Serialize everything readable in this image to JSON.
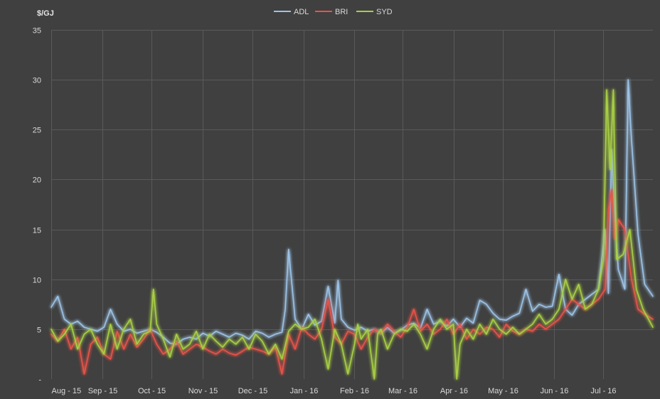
{
  "chart_data": {
    "type": "line",
    "ylabel": "$/GJ",
    "ylim": [
      0,
      35
    ],
    "yticks": [
      0,
      5,
      10,
      15,
      20,
      25,
      30,
      35
    ],
    "ytick_labels": [
      "-",
      "5",
      "10",
      "15",
      "20",
      "25",
      "30",
      "35"
    ],
    "x_start": "2015-08-01",
    "x_end": "2016-07-31",
    "xtick_labels": [
      "Aug - 15",
      "Sep - 15",
      "Oct - 15",
      "Nov - 15",
      "Dec - 15",
      "Jan - 16",
      "Feb - 16",
      "Mar - 16",
      "Apr - 16",
      "May - 16",
      "Jun - 16",
      "Jul - 16"
    ],
    "xtick_dates": [
      "2015-08-01",
      "2015-09-01",
      "2015-10-01",
      "2015-11-01",
      "2015-12-01",
      "2016-01-01",
      "2016-02-01",
      "2016-03-01",
      "2016-04-01",
      "2016-05-01",
      "2016-06-01",
      "2016-07-01"
    ],
    "grid": true,
    "legend_position": "top-center",
    "series": [
      {
        "name": "ADL",
        "color": "#9dc3e6",
        "x": [
          "2015-08-01",
          "2015-08-05",
          "2015-08-09",
          "2015-08-13",
          "2015-08-17",
          "2015-08-21",
          "2015-08-25",
          "2015-08-29",
          "2015-09-02",
          "2015-09-06",
          "2015-09-10",
          "2015-09-14",
          "2015-09-18",
          "2015-09-22",
          "2015-09-26",
          "2015-09-30",
          "2015-10-04",
          "2015-10-08",
          "2015-10-12",
          "2015-10-16",
          "2015-10-20",
          "2015-10-24",
          "2015-10-28",
          "2015-11-01",
          "2015-11-05",
          "2015-11-09",
          "2015-11-13",
          "2015-11-17",
          "2015-11-21",
          "2015-11-25",
          "2015-11-29",
          "2015-12-03",
          "2015-12-07",
          "2015-12-11",
          "2015-12-15",
          "2015-12-19",
          "2015-12-21",
          "2015-12-23",
          "2015-12-27",
          "2015-12-31",
          "2016-01-04",
          "2016-01-08",
          "2016-01-12",
          "2016-01-16",
          "2016-01-20",
          "2016-01-22",
          "2016-01-24",
          "2016-01-28",
          "2016-02-01",
          "2016-02-05",
          "2016-02-09",
          "2016-02-13",
          "2016-02-17",
          "2016-02-21",
          "2016-02-25",
          "2016-02-29",
          "2016-03-04",
          "2016-03-08",
          "2016-03-12",
          "2016-03-16",
          "2016-03-20",
          "2016-03-24",
          "2016-03-28",
          "2016-04-01",
          "2016-04-05",
          "2016-04-09",
          "2016-04-13",
          "2016-04-17",
          "2016-04-21",
          "2016-04-25",
          "2016-04-29",
          "2016-05-03",
          "2016-05-07",
          "2016-05-11",
          "2016-05-15",
          "2016-05-19",
          "2016-05-23",
          "2016-05-27",
          "2016-05-31",
          "2016-06-04",
          "2016-06-08",
          "2016-06-12",
          "2016-06-16",
          "2016-06-20",
          "2016-06-24",
          "2016-06-28",
          "2016-07-02",
          "2016-07-04",
          "2016-07-06",
          "2016-07-08",
          "2016-07-10",
          "2016-07-14",
          "2016-07-16",
          "2016-07-18",
          "2016-07-22",
          "2016-07-26",
          "2016-07-31"
        ],
        "values": [
          7.2,
          8.3,
          6.0,
          5.5,
          5.8,
          5.2,
          5.0,
          4.8,
          5.2,
          7.0,
          5.5,
          4.8,
          5.0,
          4.6,
          4.8,
          5.0,
          4.7,
          4.2,
          3.6,
          3.5,
          4.0,
          4.2,
          4.0,
          4.6,
          4.3,
          4.8,
          4.5,
          4.2,
          4.6,
          4.4,
          4.0,
          4.8,
          4.6,
          4.2,
          4.5,
          4.7,
          7.0,
          13.0,
          6.0,
          5.0,
          6.5,
          5.4,
          5.8,
          9.3,
          5.6,
          9.9,
          6.0,
          5.2,
          4.9,
          5.2,
          4.8,
          5.0,
          4.6,
          5.2,
          4.6,
          4.9,
          5.4,
          5.6,
          5.1,
          7.0,
          5.5,
          5.8,
          5.3,
          6.0,
          5.2,
          6.1,
          5.6,
          7.9,
          7.5,
          6.6,
          6.0,
          5.9,
          6.3,
          6.6,
          9.0,
          6.8,
          7.5,
          7.2,
          7.3,
          10.5,
          7.0,
          6.4,
          7.5,
          8.0,
          8.5,
          9.0,
          15.0,
          8.6,
          23.0,
          16.0,
          11.0,
          9.0,
          30.0,
          24.0,
          14.5,
          9.5,
          8.3
        ]
      },
      {
        "name": "BRI",
        "color": "#e8534a",
        "x": [
          "2015-08-01",
          "2015-08-05",
          "2015-08-09",
          "2015-08-13",
          "2015-08-17",
          "2015-08-21",
          "2015-08-25",
          "2015-08-29",
          "2015-09-02",
          "2015-09-06",
          "2015-09-10",
          "2015-09-14",
          "2015-09-18",
          "2015-09-22",
          "2015-09-26",
          "2015-09-30",
          "2015-10-04",
          "2015-10-08",
          "2015-10-12",
          "2015-10-16",
          "2015-10-20",
          "2015-10-24",
          "2015-10-28",
          "2015-11-01",
          "2015-11-05",
          "2015-11-09",
          "2015-11-13",
          "2015-11-17",
          "2015-11-21",
          "2015-11-25",
          "2015-11-29",
          "2015-12-03",
          "2015-12-07",
          "2015-12-11",
          "2015-12-15",
          "2015-12-19",
          "2015-12-23",
          "2015-12-27",
          "2015-12-31",
          "2016-01-04",
          "2016-01-08",
          "2016-01-12",
          "2016-01-16",
          "2016-01-20",
          "2016-01-24",
          "2016-01-28",
          "2016-02-01",
          "2016-02-05",
          "2016-02-09",
          "2016-02-13",
          "2016-02-17",
          "2016-02-21",
          "2016-02-25",
          "2016-02-29",
          "2016-03-04",
          "2016-03-08",
          "2016-03-12",
          "2016-03-16",
          "2016-03-20",
          "2016-03-24",
          "2016-03-28",
          "2016-04-01",
          "2016-04-05",
          "2016-04-09",
          "2016-04-13",
          "2016-04-17",
          "2016-04-21",
          "2016-04-25",
          "2016-04-29",
          "2016-05-03",
          "2016-05-07",
          "2016-05-11",
          "2016-05-15",
          "2016-05-19",
          "2016-05-23",
          "2016-05-27",
          "2016-05-31",
          "2016-06-04",
          "2016-06-08",
          "2016-06-12",
          "2016-06-16",
          "2016-06-20",
          "2016-06-24",
          "2016-06-28",
          "2016-07-02",
          "2016-07-04",
          "2016-07-06",
          "2016-07-08",
          "2016-07-10",
          "2016-07-14",
          "2016-07-18",
          "2016-07-22",
          "2016-07-26",
          "2016-07-31"
        ],
        "values": [
          4.5,
          3.8,
          5.0,
          3.0,
          4.2,
          0.5,
          3.5,
          4.2,
          2.5,
          2.0,
          4.8,
          3.0,
          4.5,
          3.2,
          4.0,
          5.0,
          3.5,
          2.5,
          3.0,
          3.8,
          2.5,
          3.0,
          3.5,
          3.2,
          2.8,
          2.5,
          3.0,
          2.6,
          2.4,
          2.8,
          3.2,
          3.0,
          2.8,
          2.5,
          3.2,
          0.5,
          4.5,
          3.0,
          5.2,
          4.5,
          4.0,
          5.0,
          8.0,
          4.2,
          3.5,
          4.8,
          4.5,
          3.0,
          4.2,
          5.0,
          4.6,
          5.5,
          4.8,
          4.2,
          5.2,
          7.0,
          4.8,
          5.5,
          4.5,
          5.0,
          6.0,
          4.5,
          5.5,
          4.0,
          5.0,
          4.5,
          5.2,
          5.0,
          4.2,
          5.5,
          4.8,
          4.5,
          5.0,
          4.8,
          5.5,
          5.0,
          5.5,
          6.0,
          7.0,
          8.0,
          7.5,
          7.0,
          7.5,
          8.0,
          9.0,
          17.0,
          19.0,
          14.0,
          16.0,
          15.0,
          10.0,
          7.0,
          6.5,
          6.0
        ]
      },
      {
        "name": "SYD",
        "color": "#a8cf45",
        "x": [
          "2015-08-01",
          "2015-08-05",
          "2015-08-09",
          "2015-08-13",
          "2015-08-17",
          "2015-08-21",
          "2015-08-25",
          "2015-08-29",
          "2015-09-02",
          "2015-09-06",
          "2015-09-10",
          "2015-09-14",
          "2015-09-18",
          "2015-09-22",
          "2015-09-26",
          "2015-09-30",
          "2015-10-02",
          "2015-10-04",
          "2015-10-08",
          "2015-10-12",
          "2015-10-16",
          "2015-10-20",
          "2015-10-24",
          "2015-10-28",
          "2015-11-01",
          "2015-11-05",
          "2015-11-09",
          "2015-11-13",
          "2015-11-17",
          "2015-11-21",
          "2015-11-25",
          "2015-11-29",
          "2015-12-03",
          "2015-12-07",
          "2015-12-11",
          "2015-12-15",
          "2015-12-19",
          "2015-12-23",
          "2015-12-27",
          "2015-12-31",
          "2016-01-04",
          "2016-01-08",
          "2016-01-12",
          "2016-01-16",
          "2016-01-20",
          "2016-01-24",
          "2016-01-28",
          "2016-02-01",
          "2016-02-03",
          "2016-02-05",
          "2016-02-09",
          "2016-02-13",
          "2016-02-15",
          "2016-02-17",
          "2016-02-21",
          "2016-02-25",
          "2016-02-29",
          "2016-03-04",
          "2016-03-08",
          "2016-03-12",
          "2016-03-16",
          "2016-03-20",
          "2016-03-24",
          "2016-03-28",
          "2016-04-01",
          "2016-04-03",
          "2016-04-05",
          "2016-04-09",
          "2016-04-13",
          "2016-04-17",
          "2016-04-21",
          "2016-04-25",
          "2016-04-29",
          "2016-05-03",
          "2016-05-07",
          "2016-05-11",
          "2016-05-15",
          "2016-05-19",
          "2016-05-23",
          "2016-05-27",
          "2016-05-31",
          "2016-06-04",
          "2016-06-08",
          "2016-06-12",
          "2016-06-16",
          "2016-06-20",
          "2016-06-24",
          "2016-06-28",
          "2016-07-01",
          "2016-07-03",
          "2016-07-05",
          "2016-07-07",
          "2016-07-09",
          "2016-07-13",
          "2016-07-17",
          "2016-07-21",
          "2016-07-25",
          "2016-07-31"
        ],
        "values": [
          5.0,
          3.8,
          4.5,
          5.5,
          3.0,
          4.5,
          5.0,
          3.5,
          2.5,
          5.5,
          3.0,
          5.0,
          6.0,
          3.5,
          4.5,
          4.8,
          9.0,
          5.5,
          4.0,
          2.2,
          4.5,
          3.0,
          3.5,
          4.8,
          3.0,
          4.5,
          3.8,
          3.2,
          4.0,
          3.5,
          4.2,
          3.0,
          4.5,
          3.8,
          2.5,
          3.5,
          2.0,
          4.8,
          5.5,
          5.0,
          5.2,
          6.0,
          4.0,
          1.0,
          5.0,
          3.5,
          0.5,
          3.5,
          5.5,
          4.0,
          5.0,
          0.0,
          4.5,
          5.0,
          3.0,
          4.5,
          5.0,
          4.8,
          5.5,
          4.5,
          3.0,
          5.0,
          6.0,
          5.0,
          5.5,
          0.0,
          3.5,
          5.0,
          4.0,
          5.5,
          4.5,
          6.0,
          5.0,
          4.5,
          5.2,
          4.5,
          5.0,
          5.5,
          6.5,
          5.5,
          6.0,
          7.0,
          10.0,
          8.0,
          9.5,
          7.0,
          7.5,
          9.0,
          12.0,
          29.0,
          21.0,
          29.0,
          12.0,
          12.5,
          15.0,
          9.0,
          7.0,
          5.2
        ]
      }
    ]
  }
}
